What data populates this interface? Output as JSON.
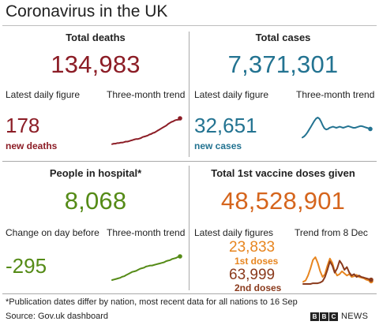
{
  "title": "Coronavirus in the UK",
  "colors": {
    "deaths": "#8c1d26",
    "cases": "#237391",
    "hospital": "#558b17",
    "vaccine_total": "#d5651d",
    "first_doses": "#e7851f",
    "second_doses": "#8a3a1c"
  },
  "deaths": {
    "header": "Total deaths",
    "total": "134,983",
    "latest_label": "Latest daily figure",
    "trend_label": "Three-month trend",
    "latest_value": "178",
    "latest_sub": "new deaths",
    "trend": [
      2,
      3,
      3,
      4,
      4,
      5,
      5,
      6,
      7,
      7,
      8,
      9,
      10,
      11,
      12,
      12,
      13,
      14,
      16,
      17,
      18,
      19,
      21,
      22,
      24,
      25,
      27,
      29,
      31,
      33,
      35,
      37,
      39,
      42,
      44,
      46,
      47,
      49,
      50,
      50,
      53
    ]
  },
  "cases": {
    "header": "Total cases",
    "total": "7,371,301",
    "latest_label": "Latest daily figure",
    "trend_label": "Three-month trend",
    "latest_value": "32,651",
    "latest_sub": "new cases",
    "trend": [
      12,
      14,
      17,
      21,
      26,
      31,
      36,
      41,
      45,
      47,
      45,
      40,
      33,
      28,
      26,
      27,
      29,
      30,
      31,
      30,
      29,
      30,
      31,
      30,
      29,
      30,
      31,
      32,
      31,
      30,
      29,
      29,
      30,
      31,
      32,
      32,
      31,
      30,
      29,
      28,
      27
    ]
  },
  "hospital": {
    "header": "People in hospital*",
    "total": "8,068",
    "latest_label": "Change on day before",
    "trend_label": "Three-month trend",
    "latest_value": "-295",
    "trend": [
      3,
      4,
      5,
      6,
      7,
      9,
      10,
      12,
      14,
      16,
      18,
      19,
      20,
      22,
      24,
      25,
      26,
      28,
      29,
      30,
      30,
      31,
      32,
      33,
      34,
      35,
      36,
      38,
      39,
      40,
      42,
      43,
      44,
      46,
      47
    ]
  },
  "vaccine": {
    "header": "Total 1st vaccine doses given",
    "total": "48,528,901",
    "latest_label": "Latest daily figures",
    "trend_label": "Trend from 8 Dec",
    "first_value": "23,833",
    "first_label": "1st doses",
    "second_value": "63,999",
    "second_label": "2nd doses",
    "first_trend": [
      3,
      5,
      12,
      22,
      34,
      38,
      30,
      18,
      10,
      14,
      26,
      36,
      30,
      18,
      12,
      14,
      18,
      15,
      12,
      14,
      10,
      11,
      13,
      10,
      9,
      8,
      6,
      5,
      4
    ],
    "second_trend": [
      0,
      0,
      0,
      0,
      1,
      1,
      1,
      2,
      4,
      10,
      20,
      32,
      26,
      16,
      22,
      33,
      28,
      20,
      24,
      16,
      12,
      14,
      10,
      12,
      10,
      9,
      8,
      7,
      6
    ]
  },
  "footnote": "*Publication dates differ by nation, most recent data for all nations to 16 Sep",
  "source": "Source: Gov.uk dashboard",
  "brand": {
    "b1": "B",
    "b2": "B",
    "b3": "C",
    "news": "NEWS"
  }
}
